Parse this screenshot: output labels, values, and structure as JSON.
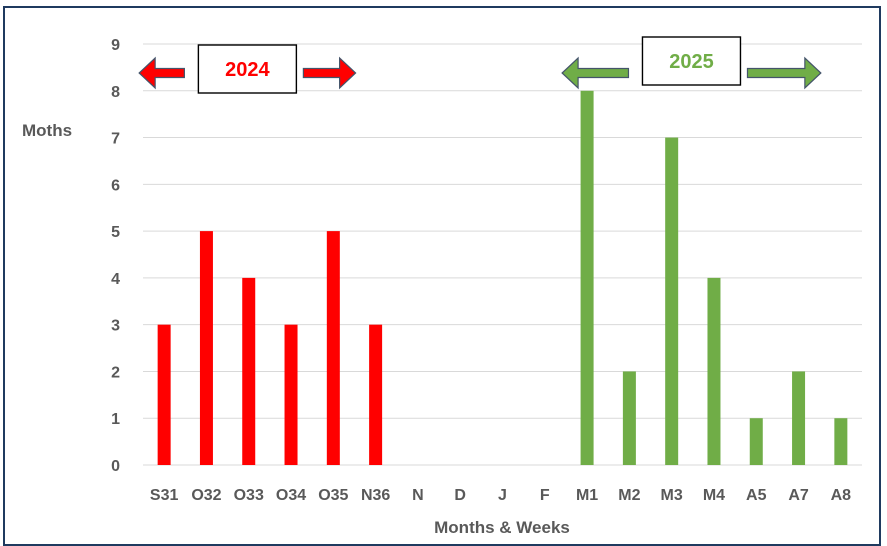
{
  "chart_data": {
    "type": "bar",
    "title": "",
    "xlabel": "Months & Weeks",
    "ylabel": "Moths",
    "ylim": [
      0,
      9
    ],
    "yticks": [
      0,
      1,
      2,
      3,
      4,
      5,
      6,
      7,
      8,
      9
    ],
    "grid": true,
    "categories": [
      "S31",
      "O32",
      "O33",
      "O34",
      "O35",
      "N36",
      "N",
      "D",
      "J",
      "F",
      "M1",
      "M2",
      "M3",
      "M4",
      "A5",
      "A7",
      "A8"
    ],
    "values": [
      3,
      5,
      4,
      3,
      5,
      3,
      0,
      0,
      0,
      0,
      8,
      2,
      7,
      4,
      1,
      2,
      1
    ],
    "bar_colors": [
      "#ff0000",
      "#ff0000",
      "#ff0000",
      "#ff0000",
      "#ff0000",
      "#ff0000",
      "#ff0000",
      "#ff0000",
      "#70ad47",
      "#70ad47",
      "#70ad47",
      "#70ad47",
      "#70ad47",
      "#70ad47",
      "#70ad47",
      "#70ad47",
      "#70ad47"
    ],
    "annotations": [
      {
        "text": "2024",
        "color": "#ff0000",
        "spans_categories": [
          "S31",
          "N36"
        ]
      },
      {
        "text": "2025",
        "color": "#70ad47",
        "spans_categories": [
          "M1",
          "A8"
        ]
      }
    ]
  },
  "colors": {
    "red": "#ff0000",
    "green": "#70ad47",
    "grid": "#d9d9d9",
    "text": "#595959",
    "frame": "#1f3a5f",
    "arrow_outline": "#44546a"
  }
}
